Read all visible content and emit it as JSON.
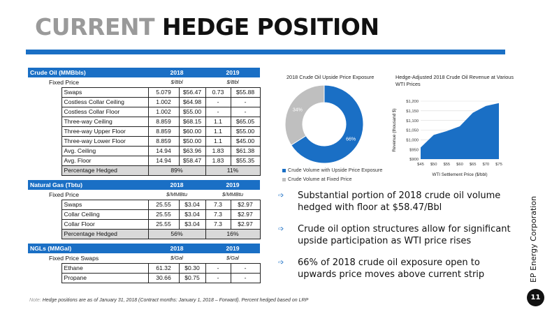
{
  "title": {
    "part1": "CURRENT",
    "part2": "HEDGE POSITION"
  },
  "crude": {
    "header": "Crude Oil (MMBbls)",
    "y1": "2018",
    "y2": "2019",
    "fixed_label": "Fixed Price",
    "unit1": "$/Bbl",
    "unit2": "$/Bbl",
    "rows": [
      [
        "Swaps",
        "5.079",
        "$56.47",
        "0.73",
        "$55.88"
      ],
      [
        "Costless Collar Ceiling",
        "1.002",
        "$64.98",
        "-",
        "-"
      ],
      [
        "Costless Collar Floor",
        "1.002",
        "$55.00",
        "-",
        "-"
      ],
      [
        "Three-way Ceiling",
        "8.859",
        "$68.15",
        "1.1",
        "$65.05"
      ],
      [
        "Three-way Upper Floor",
        "8.859",
        "$60.00",
        "1.1",
        "$55.00"
      ],
      [
        "Three-way Lower Floor",
        "8.859",
        "$50.00",
        "1.1",
        "$45.00"
      ],
      [
        "Avg. Ceiling",
        "14.94",
        "$63.96",
        "1.83",
        "$61.38"
      ],
      [
        "Avg. Floor",
        "14.94",
        "$58.47",
        "1.83",
        "$55.35"
      ]
    ],
    "pct_label": "Percentage Hedged",
    "pct1": "89%",
    "pct2": "11%"
  },
  "gas": {
    "header": "Natural Gas (Tbtu)",
    "y1": "2018",
    "y2": "2019",
    "fixed_label": "Fixed Price",
    "unit1": "$/MMBtu",
    "unit2": "$/MMBtu",
    "rows": [
      [
        "Swaps",
        "25.55",
        "$3.04",
        "7.3",
        "$2.97"
      ],
      [
        "Collar Ceiling",
        "25.55",
        "$3.04",
        "7.3",
        "$2.97"
      ],
      [
        "Collar Floor",
        "25.55",
        "$3.04",
        "7.3",
        "$2.97"
      ]
    ],
    "pct_label": "Percentage Hedged",
    "pct1": "56%",
    "pct2": "16%"
  },
  "ngl": {
    "header": "NGLs (MMGal)",
    "y1": "2018",
    "y2": "2019",
    "fixed_label": "Fixed Price Swaps",
    "unit1": "$/Gal",
    "unit2": "$/Gal",
    "rows": [
      [
        "Ethane",
        "61.32",
        "$0.30",
        "-",
        "-"
      ],
      [
        "Propane",
        "30.66",
        "$0.75",
        "-",
        "-"
      ]
    ]
  },
  "chart_data": [
    {
      "type": "pie",
      "title": "2018 Crude Oil Upside Price Exposure",
      "categories": [
        "Crude Volume with Upside Price Exposure",
        "Crude Volume at Fixed Price"
      ],
      "values": [
        66,
        34
      ],
      "value_labels": [
        "66%",
        "34%"
      ],
      "colors": [
        "#1a6fc5",
        "#bfbfbf"
      ],
      "legend_position": "bottom"
    },
    {
      "type": "area",
      "title": "Hedge-Adjusted 2018 Crude Oil Revenue at Various WTI Prices",
      "xlabel": "WTI Settlement Price ($/bbl)",
      "ylabel": "Revenue (thousand $)",
      "x_tick_labels": [
        "$45",
        "$50",
        "$55",
        "$60",
        "$65",
        "$70",
        "$75"
      ],
      "x": [
        45,
        50,
        55,
        60,
        65,
        70,
        75
      ],
      "y": [
        960,
        1025,
        1045,
        1070,
        1140,
        1175,
        1190
      ],
      "y_tick_labels": [
        "$900",
        "$950",
        "$1,000",
        "$1,050",
        "$1,100",
        "$1,150",
        "$1,200"
      ],
      "ylim": [
        900,
        1200
      ],
      "color": "#1a6fc5",
      "grid": true
    }
  ],
  "bullets": [
    "Substantial portion of 2018 crude oil volume hedged with floor at $58.47/Bbl",
    "Crude oil option structures allow for significant upside participation as WTI price rises",
    "66% of 2018 crude oil exposure open to upwards price moves above current strip"
  ],
  "bullet_icon": "arrow-right-icon",
  "company": "EP Energy Corporation",
  "page_number": "11",
  "note": {
    "label": "Note:",
    "text": "Hedge positions are as of January 31, 2018 (Contract months: January 1, 2018 – Forward). Percent hedged based on LRP"
  }
}
